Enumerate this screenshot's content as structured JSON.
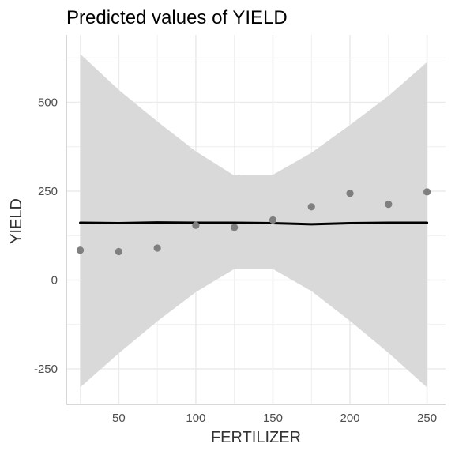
{
  "chart_data": {
    "type": "line",
    "title": "Predicted values of YIELD",
    "xlabel": "FERTILIZER",
    "ylabel": "YIELD",
    "xlim": [
      16,
      262
    ],
    "ylim": [
      -350,
      690
    ],
    "x_ticks": [
      50,
      100,
      150,
      200,
      250
    ],
    "y_ticks": [
      -250,
      0,
      250,
      500
    ],
    "x_tick_labels": [
      "50",
      "100",
      "150",
      "200",
      "250"
    ],
    "y_tick_labels": [
      "-250",
      "0",
      "250",
      "500"
    ],
    "grid": true,
    "legend": "none",
    "observed_points": {
      "x": [
        25,
        50,
        75,
        100,
        125,
        150,
        175,
        200,
        225,
        250
      ],
      "y": [
        84,
        80,
        90,
        154,
        148,
        169,
        206,
        244,
        213,
        248
      ]
    },
    "prediction": {
      "x": [
        25,
        50,
        75,
        100,
        125,
        150,
        175,
        200,
        225,
        250
      ],
      "y": [
        161,
        160,
        162,
        161,
        161,
        160,
        157,
        160,
        161,
        161
      ]
    },
    "confidence_band": {
      "x": [
        25,
        50,
        75,
        100,
        125,
        130,
        150,
        175,
        200,
        225,
        250
      ],
      "upper": [
        636,
        535,
        446,
        362,
        294,
        296,
        296,
        358,
        436,
        518,
        613
      ],
      "lower": [
        -302,
        -206,
        -116,
        -34,
        31,
        31,
        31,
        -31,
        -115,
        -205,
        -302
      ]
    },
    "colors": {
      "band": "#d9d9d9",
      "line": "#000000",
      "points": "#7f7f7f",
      "grid": "#ebebeb",
      "axis": "#cccccc"
    }
  }
}
